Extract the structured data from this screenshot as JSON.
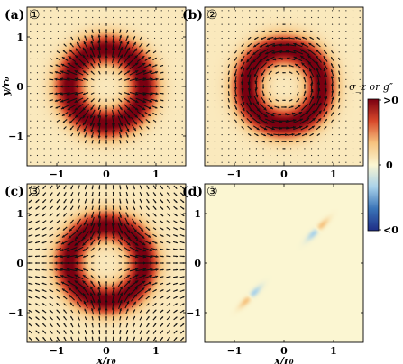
{
  "figure": {
    "colorbar": {
      "label": "σ_z or g″",
      "tick_top": ">0",
      "tick_mid": "0",
      "tick_bottom": "<0",
      "colors": [
        "#1f2d86",
        "#3a74b8",
        "#a9d2ea",
        "#fbf6d2",
        "#f6c37f",
        "#d8492b",
        "#7a0011"
      ]
    }
  },
  "chart_data": [
    {
      "type": "heatmap",
      "panel": "(a)",
      "badge": "①",
      "quantity": "sigma_z",
      "overlay": "quiver",
      "texture": "radial",
      "xlim": [
        -1.6,
        1.6
      ],
      "ylim": [
        -1.6,
        1.6
      ],
      "xticks": [
        -1,
        0,
        1
      ],
      "yticks": [
        -1,
        0,
        1
      ],
      "xlabel": "",
      "ylabel": "y/r₀",
      "ring_radius": 0.75,
      "ring_width": 0.45
    },
    {
      "type": "heatmap",
      "panel": "(b)",
      "badge": "②",
      "quantity": "sigma_z",
      "overlay": "quiver",
      "texture": "azimuthal",
      "xlim": [
        -1.6,
        1.6
      ],
      "ylim": [
        -1.6,
        1.6
      ],
      "xticks": [
        -1,
        0,
        1
      ],
      "yticks": [],
      "xlabel": "",
      "ylabel": "",
      "ring_radius": 0.75,
      "ring_width": 0.45
    },
    {
      "type": "heatmap",
      "panel": "(c)",
      "badge": "③",
      "quantity": "sigma_z",
      "overlay": "quiver",
      "texture": "mixed",
      "xlim": [
        -1.6,
        1.6
      ],
      "ylim": [
        -1.6,
        1.6
      ],
      "xticks": [
        -1,
        0,
        1
      ],
      "yticks": [
        -1,
        0,
        1
      ],
      "xlabel": "x/r₀",
      "ylabel": "",
      "ring_radius": 0.75,
      "ring_width": 0.45
    },
    {
      "type": "heatmap",
      "panel": "(d)",
      "badge": "③",
      "quantity": "g''",
      "overlay": "none",
      "xlim": [
        -1.6,
        1.6
      ],
      "ylim": [
        -1.6,
        1.6
      ],
      "xticks": [
        -1,
        0,
        1
      ],
      "yticks": [
        -1,
        0,
        1
      ],
      "xlabel": "x/r₀",
      "ylabel": "",
      "features": [
        {
          "center": [
            0.68,
            0.68
          ],
          "kind": "dipole"
        },
        {
          "center": [
            -0.68,
            -0.68
          ],
          "kind": "dipole"
        }
      ]
    }
  ]
}
